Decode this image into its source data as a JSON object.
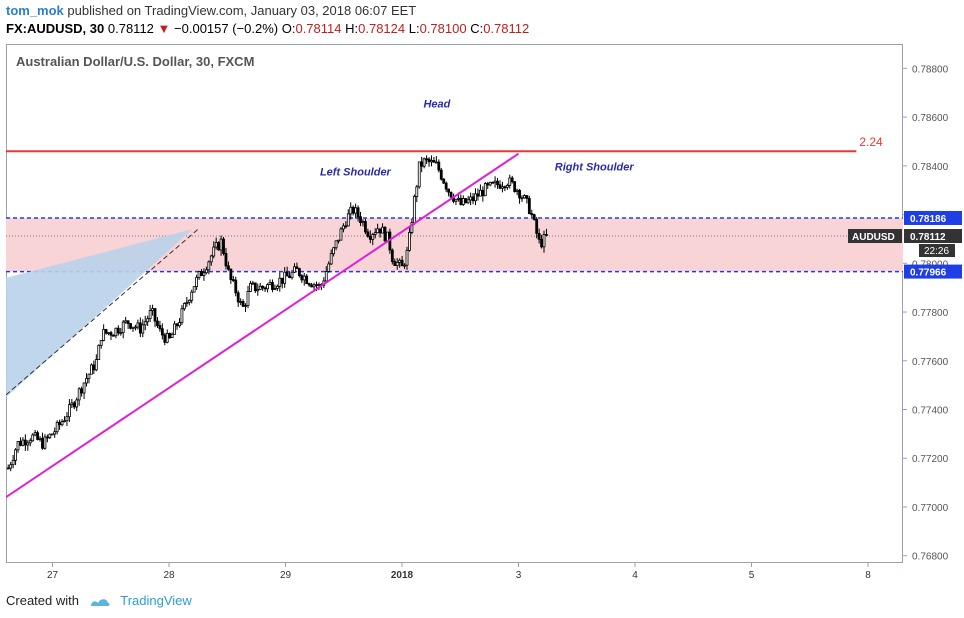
{
  "header": {
    "user": "tom_mok",
    "published": "published on TradingView.com, January 03, 2018 06:07 EET",
    "symbol": "FX:AUDUSD, 30",
    "last": "0.78112",
    "change": "−0.00157 (−0.2%)",
    "o_label": "O:",
    "o_val": "0.78114",
    "h_label": "H:",
    "h_val": "0.78124",
    "l_label": "L:",
    "l_val": "0.78100",
    "c_label": "C:",
    "c_val": "0.78112"
  },
  "footer": {
    "created": "Created with",
    "brand": "TradingView"
  },
  "colors": {
    "resistance": "#e53935",
    "trendline": "#e020d8",
    "zone": "#f8d4d6",
    "zoneline": "#1e3ee6",
    "triangle": "#b8d2ea",
    "candle": "#000000"
  },
  "chart_data": {
    "type": "candlestick",
    "title": "Australian Dollar/U.S. Dollar, 30, FXCM",
    "symbol": "AUDUSD",
    "ylim": [
      0.7677,
      0.789
    ],
    "y_ticks": [
      "0.78800",
      "0.78600",
      "0.78400",
      "0.78200",
      "0.78000",
      "0.77800",
      "0.77600",
      "0.77400",
      "0.77200",
      "0.77000",
      "0.76800"
    ],
    "y_tick_values": [
      0.788,
      0.786,
      0.784,
      0.782,
      0.78,
      0.778,
      0.776,
      0.774,
      0.772,
      0.77,
      0.768
    ],
    "x_ticks": [
      "27",
      "28",
      "29",
      "2018",
      "3",
      "4",
      "5",
      "8"
    ],
    "x_tick_positions": [
      0.0,
      1.0,
      2.0,
      3.0,
      4.0,
      5.0,
      6.0,
      7.0
    ],
    "xlim": [
      -0.4,
      7.05
    ],
    "current_price": {
      "label": "AUDUSD",
      "value": "0.78112",
      "timer": "22:26"
    },
    "zone": {
      "upper": 0.78186,
      "lower": 0.77966,
      "upper_label": "0.78186",
      "lower_label": "0.77966"
    },
    "resistance": {
      "y": 0.7846,
      "label": "2.24"
    },
    "trendline": {
      "from": [
        -0.4,
        0.7704
      ],
      "to": [
        4.0,
        0.7845
      ]
    },
    "annotations": [
      {
        "text": "Head",
        "x": 3.3,
        "y": 0.7864
      },
      {
        "text": "Left Shoulder",
        "x": 2.6,
        "y": 0.7836
      },
      {
        "text": "Right Shoulder",
        "x": 4.65,
        "y": 0.7838
      }
    ],
    "path": [
      [
        -0.38,
        0.7716
      ],
      [
        -0.3,
        0.7726
      ],
      [
        -0.18,
        0.7729
      ],
      [
        -0.08,
        0.7726
      ],
      [
        0.05,
        0.7733
      ],
      [
        0.15,
        0.774
      ],
      [
        0.28,
        0.7752
      ],
      [
        0.38,
        0.776
      ],
      [
        0.42,
        0.7771
      ],
      [
        0.52,
        0.7772
      ],
      [
        0.65,
        0.7776
      ],
      [
        0.75,
        0.7773
      ],
      [
        0.85,
        0.778
      ],
      [
        0.92,
        0.7772
      ],
      [
        1.0,
        0.7768
      ],
      [
        1.1,
        0.7778
      ],
      [
        1.2,
        0.779
      ],
      [
        1.3,
        0.7798
      ],
      [
        1.4,
        0.7806
      ],
      [
        1.45,
        0.7809
      ],
      [
        1.52,
        0.7794
      ],
      [
        1.58,
        0.7788
      ],
      [
        1.63,
        0.7781
      ],
      [
        1.7,
        0.779
      ],
      [
        1.8,
        0.779
      ],
      [
        1.9,
        0.7792
      ],
      [
        2.0,
        0.7794
      ],
      [
        2.1,
        0.7797
      ],
      [
        2.2,
        0.7793
      ],
      [
        2.3,
        0.779
      ],
      [
        2.38,
        0.7801
      ],
      [
        2.45,
        0.781
      ],
      [
        2.52,
        0.7818
      ],
      [
        2.58,
        0.7822
      ],
      [
        2.65,
        0.7818
      ],
      [
        2.72,
        0.7812
      ],
      [
        2.8,
        0.7815
      ],
      [
        2.88,
        0.781
      ],
      [
        2.92,
        0.7802
      ],
      [
        3.0,
        0.7798
      ],
      [
        3.05,
        0.7805
      ],
      [
        3.1,
        0.7824
      ],
      [
        3.15,
        0.784
      ],
      [
        3.2,
        0.7842
      ],
      [
        3.3,
        0.784
      ],
      [
        3.4,
        0.783
      ],
      [
        3.5,
        0.7824
      ],
      [
        3.6,
        0.7826
      ],
      [
        3.7,
        0.783
      ],
      [
        3.8,
        0.7832
      ],
      [
        3.9,
        0.7834
      ],
      [
        4.0,
        0.783
      ],
      [
        4.1,
        0.7822
      ],
      [
        4.18,
        0.7808
      ],
      [
        4.25,
        0.7811
      ]
    ]
  }
}
